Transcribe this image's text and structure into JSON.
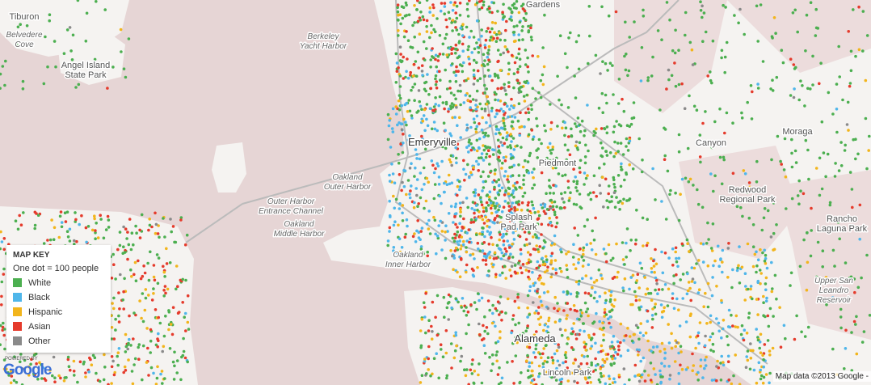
{
  "places": {
    "tiburon": [
      "Tiburon"
    ],
    "belvedere": [
      "Belvedere",
      "Cove"
    ],
    "angel_island": [
      "Angel Island",
      "State Park"
    ],
    "berkeley_harbor": [
      "Berkeley",
      "Yacht Harbor"
    ],
    "gardens": [
      "Gardens"
    ],
    "emeryville": [
      "Emeryville"
    ],
    "piedmont": [
      "Piedmont"
    ],
    "outer_harbor": [
      "Oakland",
      "Outer Harbor"
    ],
    "entrance_channel": [
      "Outer Harbor",
      "Entrance Channel"
    ],
    "middle_harbor": [
      "Oakland",
      "Middle Harbor"
    ],
    "inner_harbor": [
      "Oakland",
      "Inner Harbor"
    ],
    "splash_pad": [
      "Splash",
      "Pad Park"
    ],
    "canyon": [
      "Canyon"
    ],
    "moraga": [
      "Moraga"
    ],
    "redwood": [
      "Redwood",
      "Regional Park"
    ],
    "rancho": [
      "Rancho",
      "Laguna Park"
    ],
    "upper_san_leandro": [
      "Upper San",
      "Leandro",
      "Reservoir"
    ],
    "alameda": [
      "Alameda"
    ],
    "lincoln": [
      "Lincoln Park"
    ]
  },
  "map_key": {
    "title": "MAP KEY",
    "note": "One dot = 100 people",
    "entries": [
      {
        "label": "White",
        "color": "#4caf50"
      },
      {
        "label": "Black",
        "color": "#4fb6ea"
      },
      {
        "label": "Hispanic",
        "color": "#f2b51c"
      },
      {
        "label": "Asian",
        "color": "#e53b2c"
      },
      {
        "label": "Other",
        "color": "#8a8a8a"
      }
    ]
  },
  "footer": {
    "powered": "POWERED BY",
    "logo": "Google",
    "attribution": "Map data ©2013 Google -"
  }
}
